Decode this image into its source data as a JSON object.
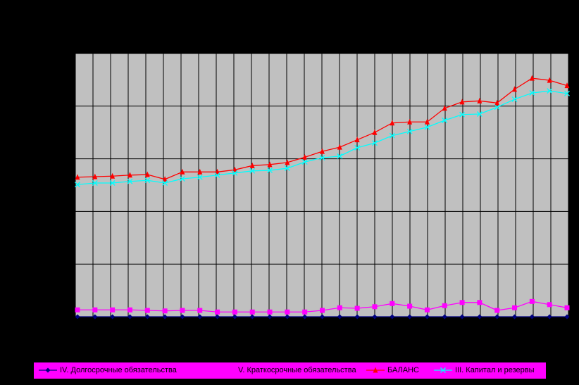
{
  "chart_data": {
    "type": "line",
    "categories": [
      null,
      null,
      null,
      null,
      null,
      null,
      null,
      null,
      null,
      null,
      null,
      null,
      null,
      null,
      null,
      null,
      null,
      null,
      null,
      null,
      null,
      null,
      null,
      null,
      null,
      null,
      null,
      null,
      null
    ],
    "ylim": [
      0,
      5
    ],
    "yticks": [
      0,
      1,
      2,
      3,
      4,
      5
    ],
    "grid": true,
    "legend": "bottom",
    "series": [
      {
        "name": "IV. Долгосрочные обязательства",
        "color": "#000080",
        "marker": "diamond",
        "values": [
          0,
          0,
          0,
          0,
          0,
          0,
          0,
          0,
          0,
          0,
          0,
          0,
          0,
          0,
          0,
          0,
          0,
          0,
          0,
          0,
          0,
          0,
          0,
          0,
          0,
          0,
          0,
          0,
          0
        ]
      },
      {
        "name": "V. Краткосрочные обязательства",
        "color": "#ff00ff",
        "marker": "square",
        "values": [
          0.13,
          0.13,
          0.13,
          0.13,
          0.12,
          0.11,
          0.12,
          0.12,
          0.09,
          0.09,
          0.09,
          0.09,
          0.09,
          0.09,
          0.12,
          0.17,
          0.16,
          0.19,
          0.25,
          0.2,
          0.13,
          0.21,
          0.27,
          0.27,
          0.12,
          0.17,
          0.29,
          0.23,
          0.17
        ]
      },
      {
        "name": "БАЛАНС",
        "color": "#ff0000",
        "marker": "triangle",
        "values": [
          2.65,
          2.66,
          2.67,
          2.69,
          2.7,
          2.61,
          2.75,
          2.75,
          2.75,
          2.79,
          2.87,
          2.89,
          2.93,
          3.03,
          3.14,
          3.22,
          3.36,
          3.5,
          3.68,
          3.7,
          3.7,
          3.96,
          4.08,
          4.1,
          4.06,
          4.32,
          4.53,
          4.49,
          4.39
        ]
      },
      {
        "name": "III. Капитал и резервы",
        "color": "#00ffff",
        "marker": "x",
        "values": [
          2.51,
          2.54,
          2.54,
          2.57,
          2.59,
          2.54,
          2.62,
          2.65,
          2.69,
          2.73,
          2.77,
          2.78,
          2.82,
          2.94,
          3.02,
          3.05,
          3.21,
          3.3,
          3.44,
          3.52,
          3.6,
          3.73,
          3.84,
          3.85,
          3.98,
          4.13,
          4.25,
          4.29,
          4.24
        ]
      }
    ]
  }
}
